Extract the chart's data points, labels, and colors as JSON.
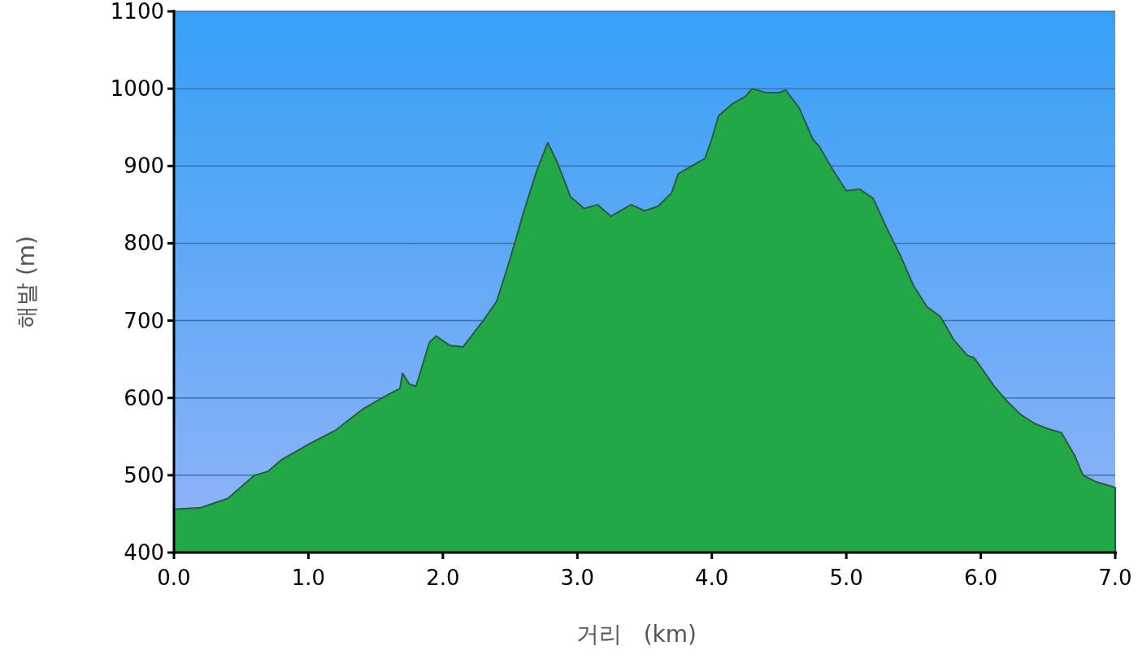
{
  "chart_data": {
    "type": "area",
    "xlabel": "거리   (km)",
    "ylabel": "해발 (m)",
    "xlim": [
      0,
      7
    ],
    "ylim": [
      400,
      1100
    ],
    "xticks": [
      {
        "value": 0,
        "label": "0.0"
      },
      {
        "value": 1,
        "label": "1.0"
      },
      {
        "value": 2,
        "label": "2.0"
      },
      {
        "value": 3,
        "label": "3.0"
      },
      {
        "value": 4,
        "label": "4.0"
      },
      {
        "value": 5,
        "label": "5.0"
      },
      {
        "value": 6,
        "label": "6.0"
      },
      {
        "value": 7,
        "label": "7.0"
      }
    ],
    "yticks": [
      400,
      500,
      600,
      700,
      800,
      900,
      1000,
      1100
    ],
    "grid": "y",
    "x": [
      0,
      0.2,
      0.4,
      0.6,
      0.7,
      0.8,
      1.0,
      1.2,
      1.4,
      1.6,
      1.68,
      1.7,
      1.75,
      1.8,
      1.9,
      1.95,
      2.05,
      2.15,
      2.3,
      2.4,
      2.5,
      2.6,
      2.7,
      2.78,
      2.85,
      2.95,
      3.05,
      3.15,
      3.25,
      3.3,
      3.4,
      3.5,
      3.6,
      3.7,
      3.75,
      3.85,
      3.95,
      4.0,
      4.05,
      4.15,
      4.25,
      4.3,
      4.4,
      4.5,
      4.55,
      4.65,
      4.75,
      4.8,
      4.9,
      5.0,
      5.1,
      5.2,
      5.3,
      5.4,
      5.5,
      5.6,
      5.7,
      5.8,
      5.9,
      5.95,
      6.0,
      6.1,
      6.2,
      6.3,
      6.4,
      6.5,
      6.6,
      6.7,
      6.76,
      6.85,
      7.0
    ],
    "series": [
      {
        "color": "#22a846",
        "values": [
          456,
          458,
          470,
          500,
          505,
          520,
          540,
          558,
          585,
          605,
          612,
          632,
          618,
          615,
          672,
          680,
          668,
          666,
          700,
          725,
          780,
          840,
          895,
          930,
          905,
          860,
          845,
          850,
          835,
          840,
          850,
          842,
          848,
          865,
          890,
          900,
          910,
          935,
          965,
          980,
          990,
          1000,
          995,
          995,
          998,
          975,
          935,
          925,
          895,
          868,
          870,
          858,
          820,
          785,
          745,
          718,
          705,
          675,
          655,
          652,
          640,
          615,
          595,
          578,
          567,
          560,
          555,
          525,
          500,
          492,
          484
        ]
      }
    ]
  }
}
